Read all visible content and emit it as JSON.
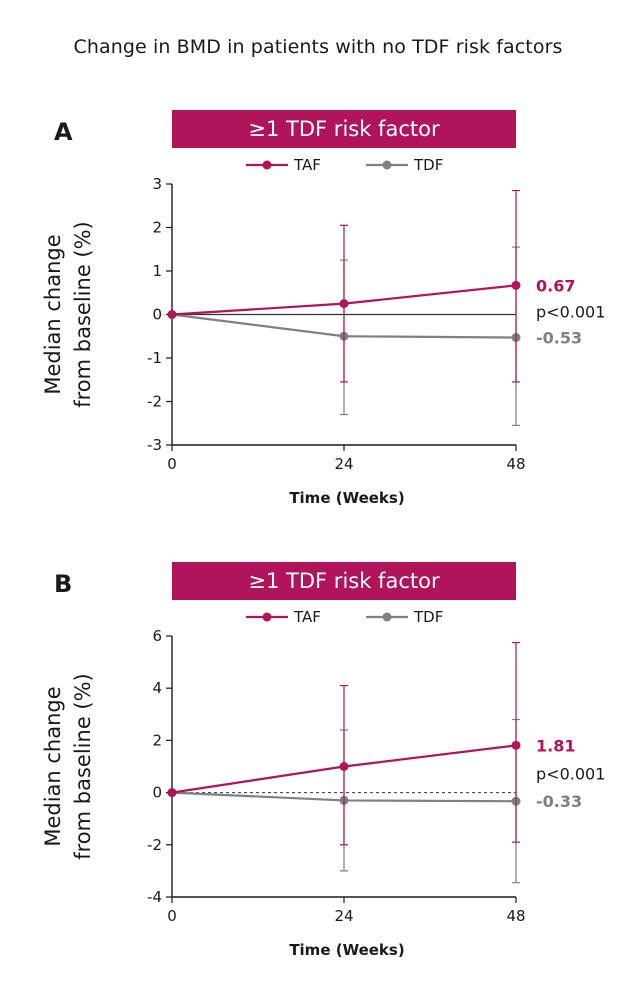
{
  "page_title": "Change in BMD in patients with no TDF risk factors",
  "chart_data": [
    {
      "type": "line",
      "panel_label": "A",
      "banner": "≥1 TDF risk factor",
      "xlabel": "Time (Weeks)",
      "ylabel": "Median change from baseline (%)",
      "x": [
        0,
        24,
        48
      ],
      "xlim": [
        0,
        48
      ],
      "ylim": [
        -3,
        3
      ],
      "yticks": [
        -3,
        -2,
        -1,
        0,
        1,
        2,
        3
      ],
      "xticks": [
        0,
        24,
        48
      ],
      "zero_line": "solid",
      "legend_placement": "top-center",
      "series": [
        {
          "name": "TAF",
          "color": "#b0145a",
          "values": [
            0,
            0.25,
            0.67
          ],
          "error_low": [
            0,
            -1.55,
            -1.55
          ],
          "error_high": [
            0,
            2.05,
            2.85
          ]
        },
        {
          "name": "TDF",
          "color": "#808080",
          "values": [
            0,
            -0.5,
            -0.53
          ],
          "error_low": [
            0,
            -2.3,
            -2.55
          ],
          "error_high": [
            0,
            1.25,
            1.55
          ]
        }
      ],
      "annotations": {
        "taf_value": "0.67",
        "p_value": "p<0.001",
        "tdf_value": "-0.53"
      }
    },
    {
      "type": "line",
      "panel_label": "B",
      "banner": "≥1 TDF risk factor",
      "xlabel": "Time (Weeks)",
      "ylabel": "Median change from baseline (%)",
      "x": [
        0,
        24,
        48
      ],
      "xlim": [
        0,
        48
      ],
      "ylim": [
        -4,
        6
      ],
      "yticks": [
        -4,
        -2,
        0,
        2,
        4,
        6
      ],
      "xticks": [
        0,
        24,
        48
      ],
      "zero_line": "dashed",
      "legend_placement": "top-center",
      "series": [
        {
          "name": "TAF",
          "color": "#b0145a",
          "values": [
            0,
            1.0,
            1.81
          ],
          "error_low": [
            0,
            -2.0,
            -1.9
          ],
          "error_high": [
            0,
            4.1,
            5.75
          ]
        },
        {
          "name": "TDF",
          "color": "#808080",
          "values": [
            0,
            -0.3,
            -0.33
          ],
          "error_low": [
            0,
            -3.0,
            -3.45
          ],
          "error_high": [
            0,
            2.4,
            2.8
          ]
        }
      ],
      "annotations": {
        "taf_value": "1.81",
        "p_value": "p<0.001",
        "tdf_value": "-0.33"
      }
    }
  ]
}
